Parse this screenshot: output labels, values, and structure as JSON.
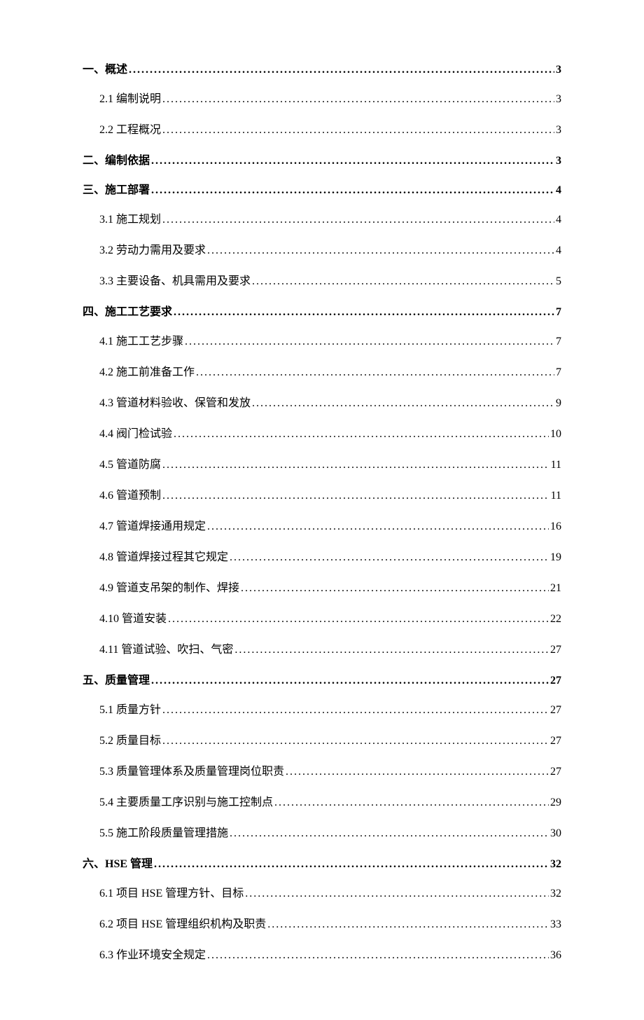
{
  "toc": {
    "background_color": "#ffffff",
    "text_color": "#000000",
    "level1_font_weight": "bold",
    "level2_font_weight": "normal",
    "font_size": 16,
    "font_family": "SimSun",
    "entries": [
      {
        "level": 1,
        "label": "一、概述",
        "page": "3"
      },
      {
        "level": 2,
        "label": "2.1 编制说明",
        "page": "3"
      },
      {
        "level": 2,
        "label": "2.2 工程概况",
        "page": "3"
      },
      {
        "level": 1,
        "label": "二、编制依据",
        "page": "3"
      },
      {
        "level": 1,
        "label": "三、施工部署",
        "page": "4"
      },
      {
        "level": 2,
        "label": "3.1 施工规划",
        "page": "4"
      },
      {
        "level": 2,
        "label": "3.2 劳动力需用及要求",
        "page": "4"
      },
      {
        "level": 2,
        "label": "3.3 主要设备、机具需用及要求",
        "page": "5"
      },
      {
        "level": 1,
        "label": "四、施工工艺要求",
        "page": "7"
      },
      {
        "level": 2,
        "label": "4.1 施工工艺步骤",
        "page": "7"
      },
      {
        "level": 2,
        "label": "4.2 施工前准备工作",
        "page": "7"
      },
      {
        "level": 2,
        "label": "4.3 管道材料验收、保管和发放",
        "page": "9"
      },
      {
        "level": 2,
        "label": "4.4 阀门检试验",
        "page": "10"
      },
      {
        "level": 2,
        "label": "4.5 管道防腐",
        "page": "11"
      },
      {
        "level": 2,
        "label": "4.6 管道预制",
        "page": "11"
      },
      {
        "level": 2,
        "label": "4.7 管道焊接通用规定",
        "page": "16"
      },
      {
        "level": 2,
        "label": "4.8 管道焊接过程其它规定",
        "page": "19"
      },
      {
        "level": 2,
        "label": "4.9 管道支吊架的制作、焊接",
        "page": "21"
      },
      {
        "level": 2,
        "label": "4.10 管道安装",
        "page": "22"
      },
      {
        "level": 2,
        "label": "4.11 管道试验、吹扫、气密",
        "page": "27"
      },
      {
        "level": 1,
        "label": "五、质量管理",
        "page": "27"
      },
      {
        "level": 2,
        "label": "5.1 质量方针",
        "page": "27"
      },
      {
        "level": 2,
        "label": "5.2 质量目标",
        "page": "27"
      },
      {
        "level": 2,
        "label": "5.3 质量管理体系及质量管理岗位职责",
        "page": "27"
      },
      {
        "level": 2,
        "label": "5.4 主要质量工序识别与施工控制点",
        "page": "29"
      },
      {
        "level": 2,
        "label": "5.5 施工阶段质量管理措施",
        "page": "30"
      },
      {
        "level": 1,
        "label": "六、HSE 管理",
        "page": "32"
      },
      {
        "level": 2,
        "label": "6.1 项目 HSE 管理方针、目标",
        "page": "32"
      },
      {
        "level": 2,
        "label": "6.2 项目 HSE 管理组织机构及职责",
        "page": "33"
      },
      {
        "level": 2,
        "label": "6.3 作业环境安全规定",
        "page": "36"
      }
    ]
  }
}
